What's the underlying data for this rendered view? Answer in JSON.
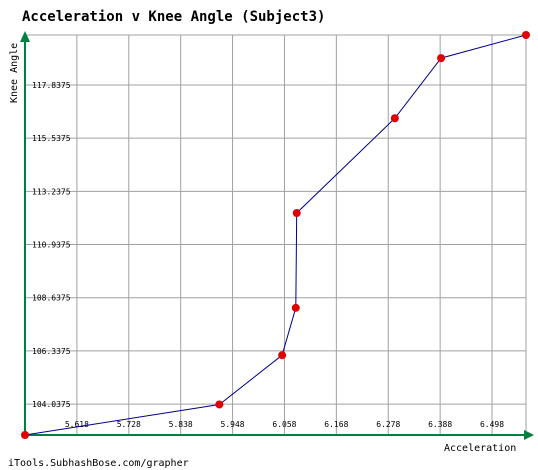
{
  "chart_data": {
    "type": "line",
    "title": "Acceleration v Knee Angle (Subject3)",
    "xlabel": "Acceleration",
    "ylabel": "Knee Angle",
    "credit": "iTools.SubhashBose.com/grapher",
    "xlim": [
      5.508,
      6.57
    ],
    "ylim": [
      102.7,
      120.0
    ],
    "x_ticks": [
      "5.618",
      "5.728",
      "5.838",
      "5.948",
      "6.058",
      "6.168",
      "6.278",
      "6.388",
      "6.498"
    ],
    "y_ticks": [
      "104.0375",
      "106.3375",
      "108.6375",
      "110.9375",
      "113.2375",
      "115.5375",
      "117.8375"
    ],
    "grid": true,
    "colors": {
      "line": "#00008b",
      "marker": "#e00000",
      "axis": "#008040",
      "grid": "#a0a0a0"
    },
    "series": [
      {
        "points": [
          {
            "x": 5.508,
            "y": 102.7
          },
          {
            "x": 5.92,
            "y": 104.02
          },
          {
            "x": 6.053,
            "y": 106.15
          },
          {
            "x": 6.082,
            "y": 108.2
          },
          {
            "x": 6.084,
            "y": 112.3
          },
          {
            "x": 6.292,
            "y": 116.4
          },
          {
            "x": 6.39,
            "y": 119.0
          },
          {
            "x": 6.57,
            "y": 120.0
          }
        ]
      }
    ]
  }
}
